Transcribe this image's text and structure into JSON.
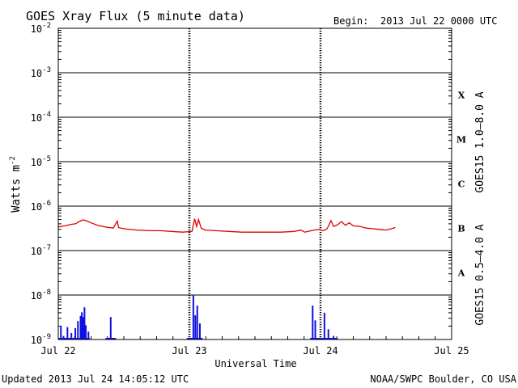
{
  "header": {
    "title": "GOES Xray Flux (5 minute data)",
    "begin_label": "Begin:",
    "begin_value": "2013 Jul 22 0000 UTC"
  },
  "footer": {
    "updated": "Updated 2013 Jul 24 14:05:12 UTC",
    "credit": "NOAA/SWPC Boulder, CO USA"
  },
  "chart_data": {
    "type": "line",
    "title": "GOES Xray Flux (5 minute data)",
    "xlabel": "Universal Time",
    "ylabel": "Watts m",
    "ylabel_exponent": "-2",
    "yscale": "log",
    "ylim": [
      1e-09,
      0.01
    ],
    "xlim_days": [
      0,
      3
    ],
    "x_ticks": [
      {
        "day": 0,
        "label": "Jul 22"
      },
      {
        "day": 1,
        "label": "Jul 23"
      },
      {
        "day": 2,
        "label": "Jul 24"
      },
      {
        "day": 3,
        "label": "Jul 25"
      }
    ],
    "y_ticks": [
      {
        "exp": -2,
        "base": "10",
        "sup": "-2"
      },
      {
        "exp": -3,
        "base": "10",
        "sup": "-3"
      },
      {
        "exp": -4,
        "base": "10",
        "sup": "-4"
      },
      {
        "exp": -5,
        "base": "10",
        "sup": "-5"
      },
      {
        "exp": -6,
        "base": "10",
        "sup": "-6"
      },
      {
        "exp": -7,
        "base": "10",
        "sup": "-7"
      },
      {
        "exp": -8,
        "base": "10",
        "sup": "-8"
      },
      {
        "exp": -9,
        "base": "10",
        "sup": "-9"
      }
    ],
    "flare_classes": [
      {
        "label": "X",
        "exp": -3.5
      },
      {
        "label": "M",
        "exp": -4.5
      },
      {
        "label": "C",
        "exp": -5.5
      },
      {
        "label": "B",
        "exp": -6.5
      },
      {
        "label": "A",
        "exp": -7.5
      }
    ],
    "series": [
      {
        "name": "GOES15 1.0–8.0 A",
        "color": "#e00000",
        "points": [
          [
            0.0,
            3.4e-07
          ],
          [
            0.05,
            3.6e-07
          ],
          [
            0.1,
            3.9e-07
          ],
          [
            0.13,
            4e-07
          ],
          [
            0.16,
            4.5e-07
          ],
          [
            0.19,
            4.9e-07
          ],
          [
            0.22,
            4.6e-07
          ],
          [
            0.26,
            4.1e-07
          ],
          [
            0.3,
            3.7e-07
          ],
          [
            0.36,
            3.4e-07
          ],
          [
            0.42,
            3.2e-07
          ],
          [
            0.45,
            4.6e-07
          ],
          [
            0.46,
            3.3e-07
          ],
          [
            0.5,
            3.1e-07
          ],
          [
            0.6,
            2.9e-07
          ],
          [
            0.7,
            2.8e-07
          ],
          [
            0.78,
            2.8e-07
          ],
          [
            0.86,
            2.7e-07
          ],
          [
            0.95,
            2.6e-07
          ],
          [
            1.02,
            2.7e-07
          ],
          [
            1.04,
            5.2e-07
          ],
          [
            1.055,
            3.5e-07
          ],
          [
            1.07,
            5e-07
          ],
          [
            1.09,
            3.2e-07
          ],
          [
            1.12,
            2.9e-07
          ],
          [
            1.2,
            2.8e-07
          ],
          [
            1.3,
            2.7e-07
          ],
          [
            1.4,
            2.6e-07
          ],
          [
            1.5,
            2.6e-07
          ],
          [
            1.6,
            2.6e-07
          ],
          [
            1.7,
            2.6e-07
          ],
          [
            1.8,
            2.7e-07
          ],
          [
            1.85,
            2.9e-07
          ],
          [
            1.88,
            2.6e-07
          ],
          [
            1.95,
            2.9e-07
          ],
          [
            1.99,
            3e-07
          ],
          [
            2.02,
            2.8e-07
          ],
          [
            2.05,
            3.1e-07
          ],
          [
            2.08,
            4.7e-07
          ],
          [
            2.1,
            3.5e-07
          ],
          [
            2.13,
            3.8e-07
          ],
          [
            2.16,
            4.5e-07
          ],
          [
            2.19,
            3.7e-07
          ],
          [
            2.22,
            4.2e-07
          ],
          [
            2.25,
            3.6e-07
          ],
          [
            2.3,
            3.5e-07
          ],
          [
            2.35,
            3.2e-07
          ],
          [
            2.4,
            3.1e-07
          ],
          [
            2.45,
            3e-07
          ],
          [
            2.5,
            2.9e-07
          ],
          [
            2.54,
            3.1e-07
          ],
          [
            2.57,
            3.3e-07
          ]
        ]
      },
      {
        "name": "GOES15 0.5–4.0 A",
        "color": "#1010e0",
        "baseline": 1e-09,
        "spikes": [
          [
            0.02,
            2e-09
          ],
          [
            0.04,
            1.2e-09
          ],
          [
            0.07,
            1.9e-09
          ],
          [
            0.1,
            1.4e-09
          ],
          [
            0.13,
            1.8e-09
          ],
          [
            0.15,
            2.6e-09
          ],
          [
            0.17,
            3.4e-09
          ],
          [
            0.18,
            4.1e-09
          ],
          [
            0.19,
            3.2e-09
          ],
          [
            0.2,
            5.3e-09
          ],
          [
            0.21,
            2.1e-09
          ],
          [
            0.23,
            1.5e-09
          ],
          [
            0.4,
            3.2e-09
          ],
          [
            1.03,
            1e-08
          ],
          [
            1.045,
            3.5e-09
          ],
          [
            1.06,
            5.8e-09
          ],
          [
            1.08,
            2.3e-09
          ],
          [
            1.94,
            5.8e-09
          ],
          [
            1.96,
            2.7e-09
          ],
          [
            2.03,
            4e-09
          ],
          [
            2.06,
            1.7e-09
          ],
          [
            2.1,
            1.2e-09
          ]
        ]
      }
    ]
  }
}
